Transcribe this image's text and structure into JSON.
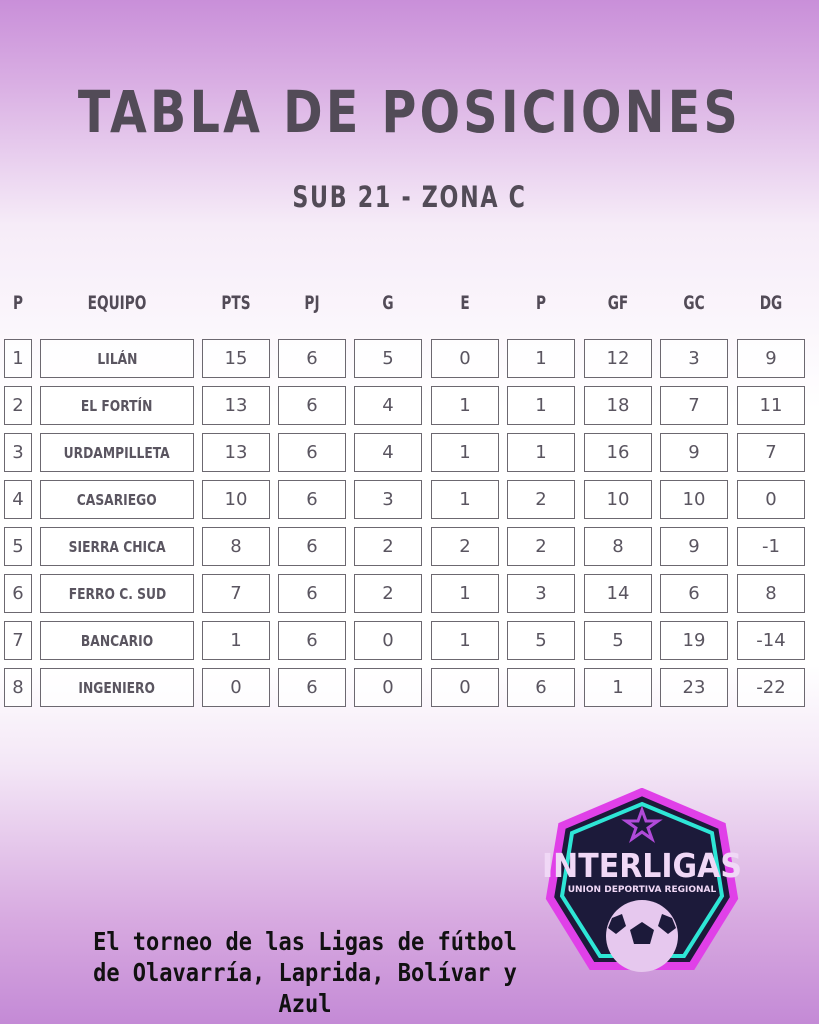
{
  "title": "TABLA DE POSICIONES",
  "subtitle": "SUB 21 - ZONA C",
  "headers": [
    "P",
    "EQUIPO",
    "PTS",
    "PJ",
    "G",
    "E",
    "P",
    "GF",
    "GC",
    "DG"
  ],
  "rows": [
    [
      "1",
      "LILÁN",
      "15",
      "6",
      "5",
      "0",
      "1",
      "12",
      "3",
      "9"
    ],
    [
      "2",
      "EL FORTÍN",
      "13",
      "6",
      "4",
      "1",
      "1",
      "18",
      "7",
      "11"
    ],
    [
      "3",
      "URDAMPILLETA",
      "13",
      "6",
      "4",
      "1",
      "1",
      "16",
      "9",
      "7"
    ],
    [
      "4",
      "CASARIEGO",
      "10",
      "6",
      "3",
      "1",
      "2",
      "10",
      "10",
      "0"
    ],
    [
      "5",
      "SIERRA CHICA",
      "8",
      "6",
      "2",
      "2",
      "2",
      "8",
      "9",
      "-1"
    ],
    [
      "6",
      "FERRO C. SUD",
      "7",
      "6",
      "2",
      "1",
      "3",
      "14",
      "6",
      "8"
    ],
    [
      "7",
      "BANCARIO",
      "1",
      "6",
      "0",
      "1",
      "5",
      "5",
      "19",
      "-14"
    ],
    [
      "8",
      "INGENIERO",
      "0",
      "6",
      "0",
      "0",
      "6",
      "1",
      "23",
      "-22"
    ]
  ],
  "footer": {
    "line1": "El torneo de las Ligas de fútbol",
    "line2": "de Olavarría, Laprida, Bolívar y Azul"
  },
  "logo": {
    "name": "INTERLIGAS",
    "tagline": "UNION DEPORTIVA REGIONAL",
    "colors": {
      "outer": "#e040e8",
      "inner": "#2ee6d6",
      "fill": "#1c1a3a"
    }
  }
}
